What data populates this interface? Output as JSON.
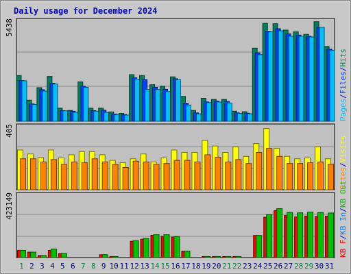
{
  "chart_data": {
    "type": "bar",
    "title": "Daily usage for December 2024",
    "categories": [
      "1",
      "2",
      "3",
      "4",
      "5",
      "6",
      "7",
      "8",
      "9",
      "10",
      "11",
      "12",
      "13",
      "14",
      "15",
      "16",
      "17",
      "18",
      "19",
      "20",
      "21",
      "22",
      "23",
      "24",
      "25",
      "26",
      "27",
      "28",
      "29",
      "30",
      "31"
    ],
    "weekend_categories": [
      "1",
      "7",
      "8",
      "14",
      "15",
      "21",
      "22",
      "28",
      "29"
    ],
    "colors": {
      "background": "#c8c8c8",
      "plot": "#c0c0c0",
      "gridline": "#888888",
      "title": "#0000cc",
      "day_normal": "#000080",
      "day_weekend": "#008040",
      "hits": "#00805c",
      "files": "#0040ff",
      "pages": "#00c0ff",
      "visits": "#ffff00",
      "sites": "#ff8000",
      "kbf": "#ff0000",
      "kbin": "#0080ff",
      "kbout": "#00c000"
    },
    "panels": [
      {
        "id": "hits-files-pages",
        "axis_label": "5438",
        "ymax": 5438,
        "side_labels": [
          {
            "text": "Pages",
            "color_key": "pages"
          },
          {
            "text": "/",
            "color_key": "title"
          },
          {
            "text": "Files",
            "color_key": "files"
          },
          {
            "text": "/",
            "color_key": "title"
          },
          {
            "text": "Hits",
            "color_key": "hits"
          }
        ],
        "series": [
          {
            "key": "hits",
            "values": [
              2450,
              1130,
              1800,
              2400,
              700,
              580,
              2110,
              700,
              700,
              500,
              420,
              2500,
              2450,
              1960,
              1880,
              2380,
              1330,
              580,
              1230,
              1170,
              1170,
              540,
              510,
              3920,
              5250,
              5230,
              4890,
              4800,
              4660,
              5340,
              4010
            ]
          },
          {
            "key": "files",
            "values": [
              2180,
              930,
              1690,
              2040,
              570,
              540,
              1880,
              570,
              590,
              390,
              360,
              2330,
              2230,
              1820,
              1710,
              2280,
              970,
              450,
              1040,
              1080,
              1060,
              450,
              430,
              3670,
              4830,
              4960,
              4690,
              4620,
              4560,
              5030,
              3870
            ]
          },
          {
            "key": "pages",
            "values": [
              2170,
              900,
              1620,
              2000,
              560,
              480,
              1820,
              540,
              470,
              350,
              330,
              2260,
              1700,
              1700,
              1590,
              2230,
              870,
              400,
              1000,
              1030,
              980,
              420,
              400,
              3570,
              4810,
              4850,
              4560,
              4560,
              4520,
              5040,
              3810
            ]
          }
        ]
      },
      {
        "id": "visits-sites",
        "axis_label": "405",
        "ymax": 405,
        "side_labels": [
          {
            "text": "Sites",
            "color_key": "sites"
          },
          {
            "text": "/",
            "color_key": "title"
          },
          {
            "text": "Visits",
            "color_key": "visits"
          }
        ],
        "series": [
          {
            "key": "visits",
            "values": [
              250,
              225,
              203,
              250,
              200,
              220,
              240,
              240,
              220,
              185,
              170,
              195,
              225,
              175,
              200,
              250,
              235,
              235,
              310,
              275,
              235,
              270,
              210,
              290,
              385,
              260,
              210,
              195,
              200,
              270,
              195
            ]
          },
          {
            "key": "sites",
            "values": [
              195,
              195,
              175,
              190,
              160,
              175,
              170,
              195,
              175,
              160,
              140,
              180,
              175,
              160,
              165,
              185,
              185,
              175,
              220,
              205,
              175,
              190,
              165,
              235,
              260,
              210,
              165,
              165,
              170,
              175,
              160
            ]
          }
        ]
      },
      {
        "id": "kb-f-in-out",
        "axis_label": "423149",
        "ymax": 423149,
        "side_labels": [
          {
            "text": "KB F",
            "color_key": "kbf"
          },
          {
            "text": "/",
            "color_key": "title"
          },
          {
            "text": "KB In",
            "color_key": "kbin"
          },
          {
            "text": "/",
            "color_key": "title"
          },
          {
            "text": "KB Out",
            "color_key": "kbout"
          }
        ],
        "series": [
          {
            "key": "kbf",
            "values": [
              48000,
              36000,
              14000,
              48000,
              27000,
              0,
              0,
              0,
              19000,
              7000,
              0,
              108000,
              122000,
              148000,
              141000,
              136000,
              43000,
              0,
              7000,
              7000,
              7000,
              7000,
              0,
              147000,
              268000,
              312000,
              279000,
              270000,
              276000,
              273000,
              275000
            ]
          },
          {
            "key": "kbout",
            "values": [
              48000,
              36000,
              14000,
              57000,
              27000,
              0,
              0,
              0,
              19000,
              7000,
              0,
              112000,
              127000,
              152000,
              152000,
              140000,
              43000,
              0,
              7000,
              7000,
              7000,
              7000,
              0,
              147000,
              285000,
              325000,
              300000,
              297000,
              302000,
              299000,
              296000
            ]
          }
        ]
      }
    ]
  }
}
